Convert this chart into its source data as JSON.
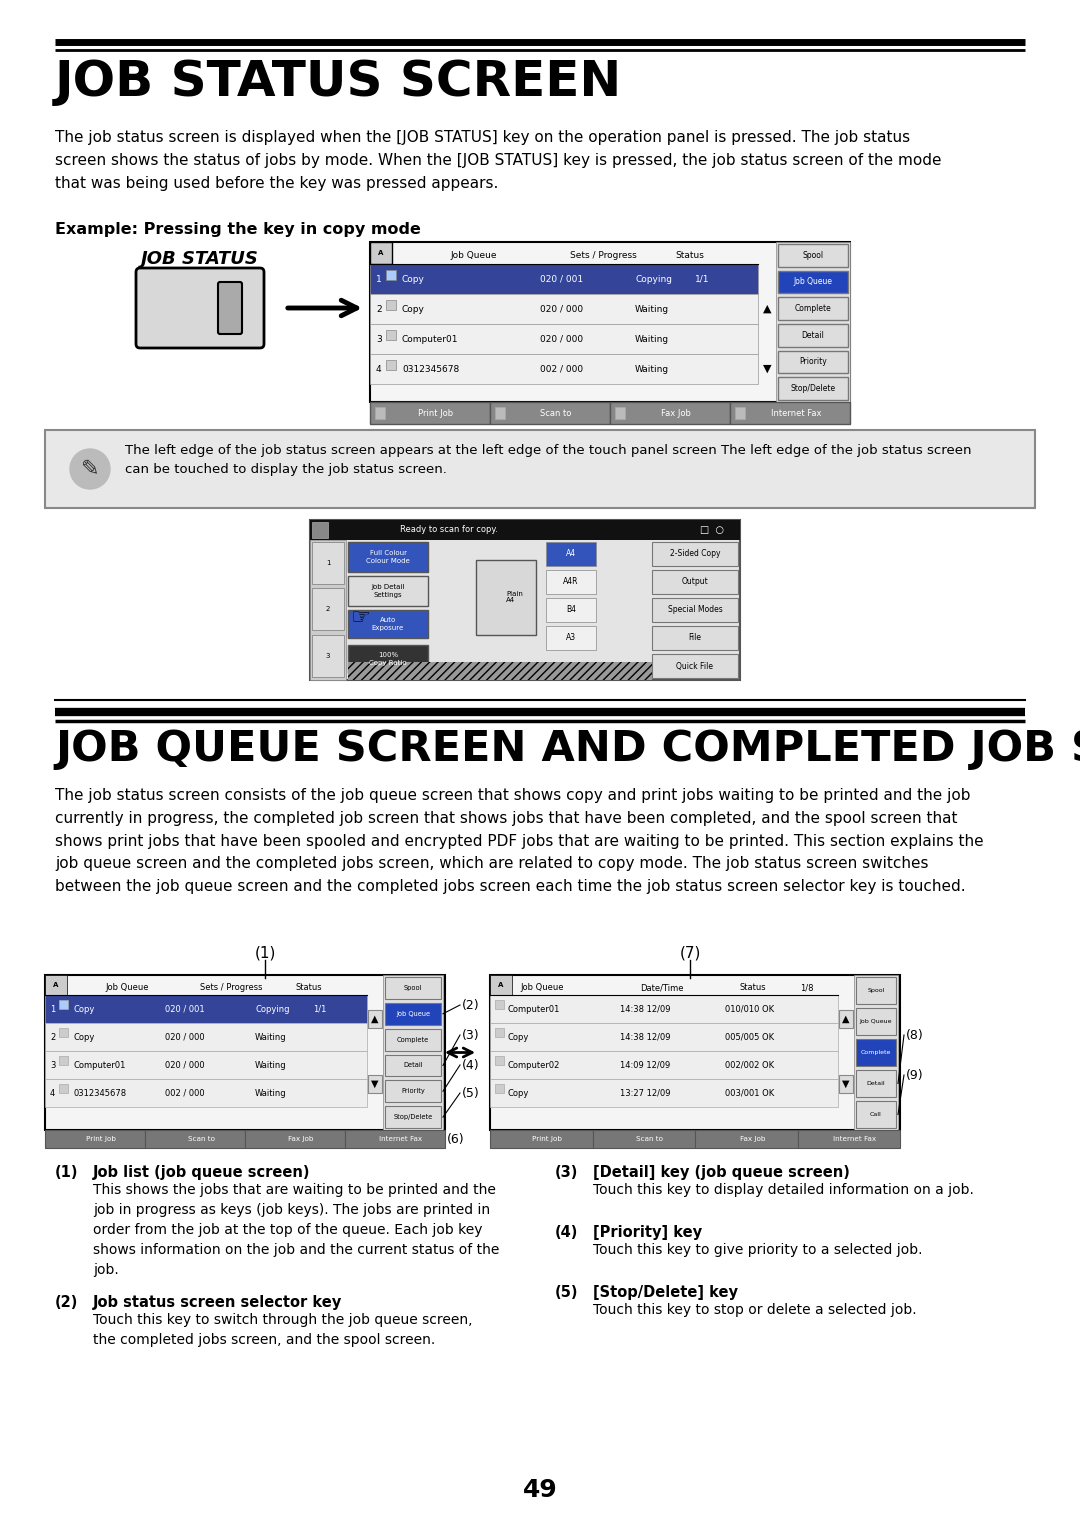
{
  "page_bg": "#ffffff",
  "title1": "JOB STATUS SCREEN",
  "title2": "JOB QUEUE SCREEN AND COMPLETED JOB SCREEN",
  "para1": "The job status screen is displayed when the [JOB STATUS] key on the operation panel is pressed. The job status\nscreen shows the status of jobs by mode. When the [JOB STATUS] key is pressed, the job status screen of the mode\nthat was being used before the key was pressed appears.",
  "example_label": "Example: Pressing the key in copy mode",
  "note_text": "The left edge of the job status screen appears at the left edge of the touch panel screen The left edge of the job status screen\ncan be touched to display the job status screen.",
  "para2": "The job status screen consists of the job queue screen that shows copy and print jobs waiting to be printed and the job\ncurrently in progress, the completed job screen that shows jobs that have been completed, and the spool screen that\nshows print jobs that have been spooled and encrypted PDF jobs that are waiting to be printed. This section explains the\njob queue screen and the completed jobs screen, which are related to copy mode. The job status screen switches\nbetween the job queue screen and the completed jobs screen each time the job status screen selector key is touched.",
  "numbered_items": [
    {
      "num": "(1)",
      "title": "Job list (job queue screen)",
      "body": "This shows the jobs that are waiting to be printed and the\njob in progress as keys (job keys). The jobs are printed in\norder from the job at the top of the queue. Each job key\nshows information on the job and the current status of the\njob."
    },
    {
      "num": "(2)",
      "title": "Job status screen selector key",
      "body": "Touch this key to switch through the job queue screen,\nthe completed jobs screen, and the spool screen."
    },
    {
      "num": "(3)",
      "title": "[Detail] key (job queue screen)",
      "body": "Touch this key to display detailed information on a job."
    },
    {
      "num": "(4)",
      "title": "[Priority] key",
      "body": "Touch this key to give priority to a selected job."
    },
    {
      "num": "(5)",
      "title": "[Stop/Delete] key",
      "body": "Touch this key to stop or delete a selected job."
    }
  ],
  "page_num": "49"
}
